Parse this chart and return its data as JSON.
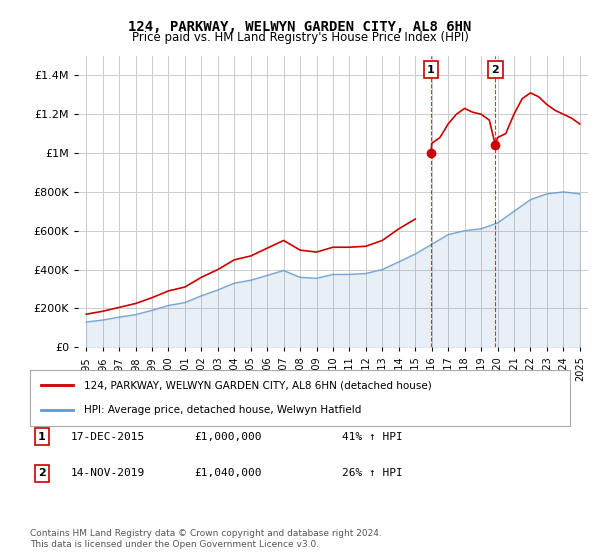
{
  "title": "124, PARKWAY, WELWYN GARDEN CITY, AL8 6HN",
  "subtitle": "Price paid vs. HM Land Registry's House Price Index (HPI)",
  "legend_line1": "124, PARKWAY, WELWYN GARDEN CITY, AL8 6HN (detached house)",
  "legend_line2": "HPI: Average price, detached house, Welwyn Hatfield",
  "transaction1_label": "1",
  "transaction1_date": "17-DEC-2015",
  "transaction1_price": "£1,000,000",
  "transaction1_hpi": "41% ↑ HPI",
  "transaction2_label": "2",
  "transaction2_date": "14-NOV-2019",
  "transaction2_price": "£1,040,000",
  "transaction2_hpi": "26% ↑ HPI",
  "footnote": "Contains HM Land Registry data © Crown copyright and database right 2024.\nThis data is licensed under the Open Government Licence v3.0.",
  "red_color": "#cc0000",
  "blue_color": "#6699cc",
  "vline_color": "#cc0000",
  "background_color": "#ffffff",
  "grid_color": "#cccccc",
  "marker1_x": 2015.96,
  "marker1_y": 1000000,
  "marker2_x": 2019.87,
  "marker2_y": 1040000,
  "ylim": [
    0,
    1500000
  ],
  "xlim_start": 1994.5,
  "xlim_end": 2025.5
}
